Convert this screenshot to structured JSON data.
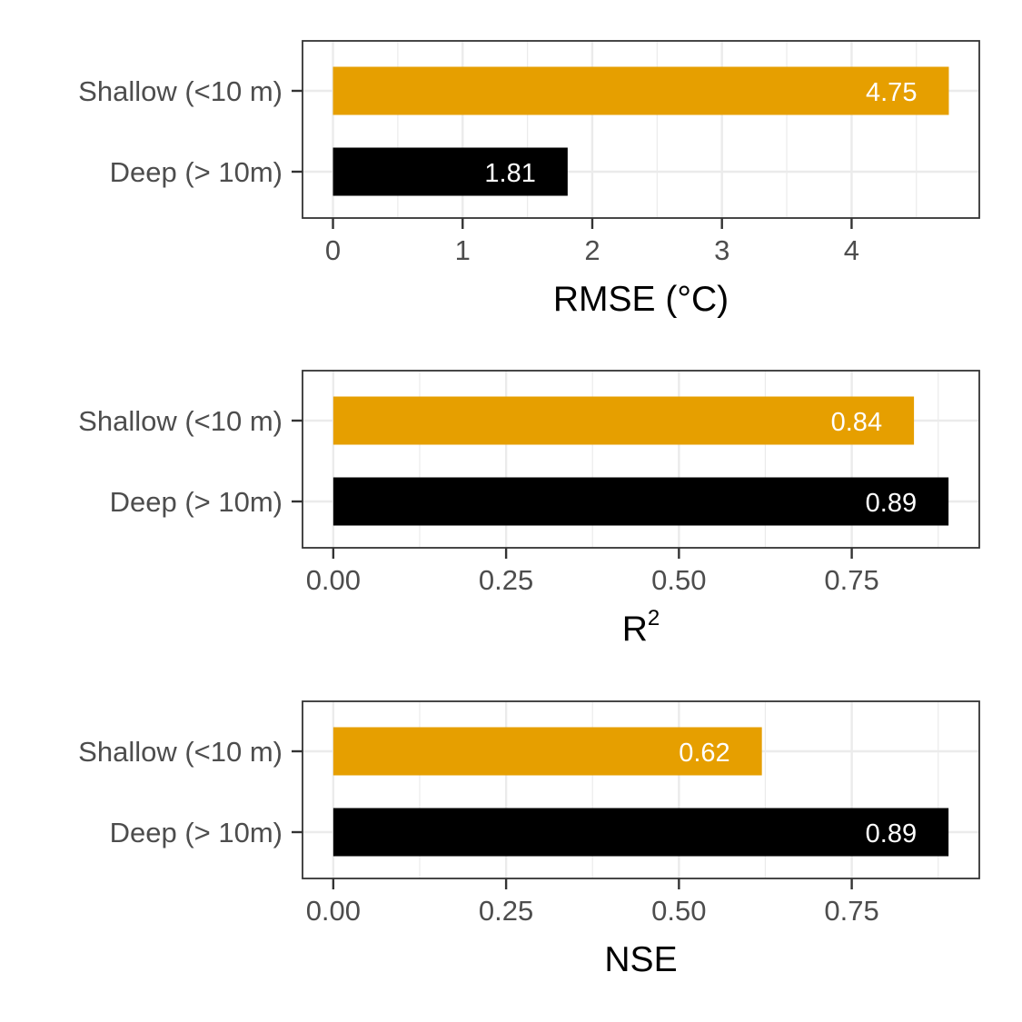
{
  "chart_data": [
    {
      "type": "bar",
      "orientation": "horizontal",
      "categories": [
        "Shallow (<10 m)",
        "Deep (> 10m)"
      ],
      "values": [
        4.75,
        1.81
      ],
      "value_labels": [
        "4.75",
        "1.81"
      ],
      "colors": [
        "#E69F00",
        "#000000"
      ],
      "xlabel": "RMSE (°C)",
      "xticks": [
        0,
        1,
        2,
        3,
        4
      ],
      "xtick_labels": [
        "0",
        "1",
        "2",
        "3",
        "4"
      ],
      "xlim": [
        -0.235,
        4.985
      ],
      "grid": true
    },
    {
      "type": "bar",
      "orientation": "horizontal",
      "categories": [
        "Shallow (<10 m)",
        "Deep (> 10m)"
      ],
      "values": [
        0.84,
        0.89
      ],
      "value_labels": [
        "0.84",
        "0.89"
      ],
      "colors": [
        "#E69F00",
        "#000000"
      ],
      "xlabel": "R",
      "xlabel_superscript": "2",
      "xticks": [
        0,
        0.25,
        0.5,
        0.75
      ],
      "xtick_labels": [
        "0.00",
        "0.25",
        "0.50",
        "0.75"
      ],
      "xlim": [
        -0.0445,
        0.9345
      ],
      "grid": true
    },
    {
      "type": "bar",
      "orientation": "horizontal",
      "categories": [
        "Shallow (<10 m)",
        "Deep (> 10m)"
      ],
      "values": [
        0.62,
        0.89
      ],
      "value_labels": [
        "0.62",
        "0.89"
      ],
      "colors": [
        "#E69F00",
        "#000000"
      ],
      "xlabel": "NSE",
      "xticks": [
        0,
        0.25,
        0.5,
        0.75
      ],
      "xtick_labels": [
        "0.00",
        "0.25",
        "0.50",
        "0.75"
      ],
      "xlim": [
        -0.0445,
        0.9345
      ],
      "grid": true
    }
  ]
}
